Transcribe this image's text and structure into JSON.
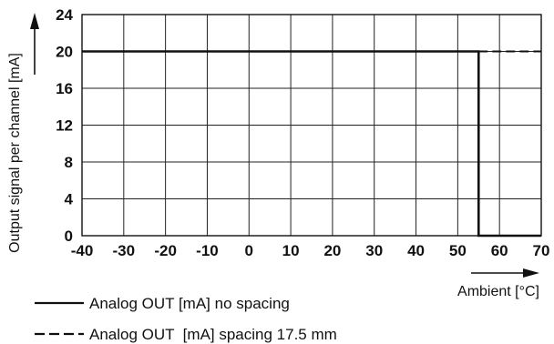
{
  "chart_data": {
    "type": "line",
    "xlabel": "Ambient [°C]",
    "ylabel": "Output signal per channel [mA]",
    "xlim": [
      -40,
      70
    ],
    "ylim": [
      0,
      24
    ],
    "x_ticks": [
      -40,
      -30,
      -20,
      -10,
      0,
      10,
      20,
      30,
      40,
      50,
      60,
      70
    ],
    "y_ticks": [
      0,
      4,
      8,
      12,
      16,
      20,
      24
    ],
    "grid": true,
    "legend_position": "bottom-left",
    "series": [
      {
        "name": "Analog OUT [mA] no spacing",
        "style": "solid",
        "color": "#111111",
        "points": [
          [
            -40,
            20
          ],
          [
            55,
            20
          ],
          [
            55,
            0
          ],
          [
            70,
            0
          ]
        ]
      },
      {
        "name": "Analog OUT  [mA] spacing 17.5 mm",
        "style": "dashed",
        "color": "#111111",
        "points": [
          [
            55,
            20
          ],
          [
            70,
            20
          ]
        ]
      }
    ]
  }
}
